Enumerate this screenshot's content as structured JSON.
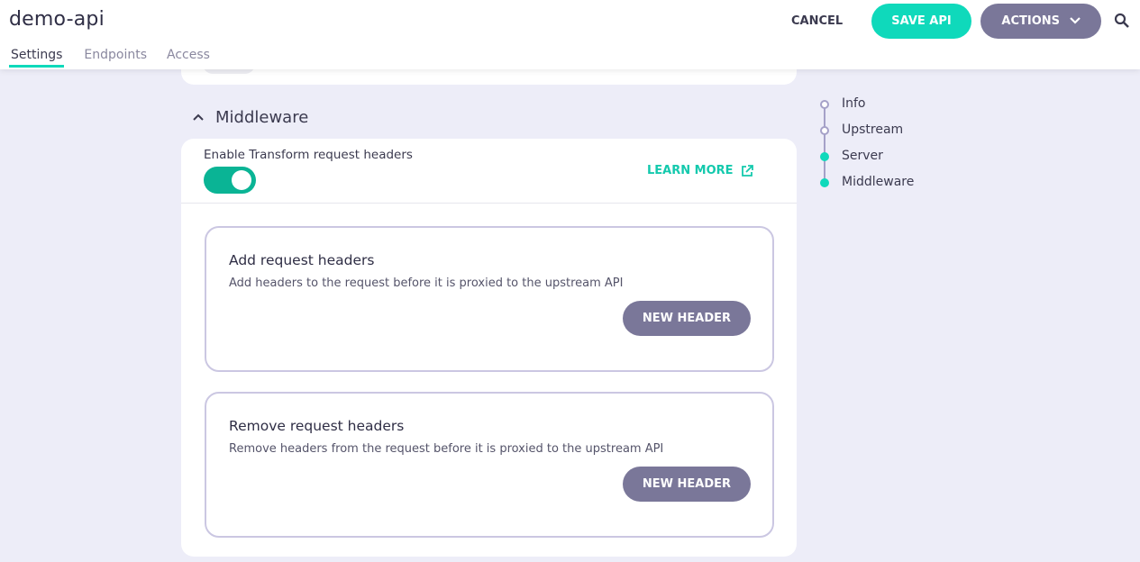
{
  "header": {
    "title": "demo-api",
    "tabs": [
      {
        "label": "Settings",
        "active": true
      },
      {
        "label": "Endpoints"
      },
      {
        "label": "Access"
      }
    ],
    "cancel": "CANCEL",
    "save": "SAVE API",
    "actions": "ACTIONS",
    "search_icon": "search-icon"
  },
  "middleware": {
    "heading": "Middleware",
    "enable_label": "Enable Transform request headers",
    "enabled": true,
    "learn_more": "LEARN MORE",
    "sections": [
      {
        "title": "Add request headers",
        "description": "Add headers to the request before it is proxied to the upstream API",
        "button": "NEW HEADER"
      },
      {
        "title": "Remove request headers",
        "description": "Remove headers from the request before it is proxied to the upstream API",
        "button": "NEW HEADER"
      }
    ]
  },
  "steps": [
    {
      "label": "Info",
      "done": false
    },
    {
      "label": "Upstream",
      "done": false
    },
    {
      "label": "Server",
      "done": true
    },
    {
      "label": "Middleware",
      "done": true
    }
  ],
  "colors": {
    "accent": "#0fd9bb",
    "toggle": "#0ab495",
    "secondary": "#7a7799",
    "background": "#ededf8"
  }
}
